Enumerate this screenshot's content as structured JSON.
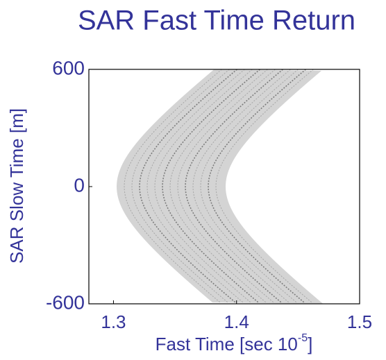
{
  "chart_data": {
    "type": "image",
    "title": "SAR Fast Time Return",
    "x_label": "Fast Time [sec 10",
    "x_label_exponent": "-5",
    "x_label_end": "]",
    "y_label": "SAR Slow Time [m]",
    "xlim": [
      1.28,
      1.5
    ],
    "xticks": [
      1.3,
      1.4,
      1.5
    ],
    "ylim": [
      -600,
      600
    ],
    "yticks": [
      -600,
      0,
      600
    ],
    "color": "#333399"
  }
}
